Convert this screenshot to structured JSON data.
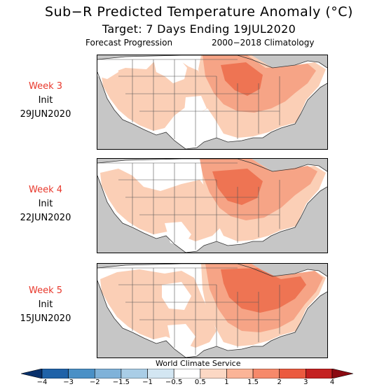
{
  "header": {
    "title": "Sub−R Predicted Temperature Anomaly (°C)",
    "target": "Target: 7 Days Ending 19JUL2020",
    "subtitle_left": "Forecast Progression",
    "subtitle_right": "2000−2018 Climatology"
  },
  "panels": [
    {
      "week": "Week 3",
      "init_label": "Init",
      "init_date": "29JUN2020"
    },
    {
      "week": "Week 4",
      "init_label": "Init",
      "init_date": "22JUN2020"
    },
    {
      "week": "Week 5",
      "init_label": "Init",
      "init_date": "15JUN2020"
    }
  ],
  "colorbar": {
    "credit": "World Climate Service",
    "ticks": [
      "−4",
      "−3",
      "−2",
      "−1.5",
      "−1",
      "−0.5",
      "0.5",
      "1",
      "1.5",
      "2",
      "3",
      "4"
    ],
    "colors": [
      "#08306b",
      "#1f62a8",
      "#4a90c6",
      "#7fb2d9",
      "#a9cde6",
      "#d3e6f2",
      "#ffffff",
      "#fcd8c4",
      "#fbb497",
      "#f6896a",
      "#eb5a3f",
      "#c42020",
      "#8b0a12"
    ]
  },
  "map_colors": {
    "ocean": "#c6c6c6",
    "land": "#ffffff",
    "light": "#fbcfb6",
    "medium": "#f6a486",
    "strong": "#ee7453"
  }
}
